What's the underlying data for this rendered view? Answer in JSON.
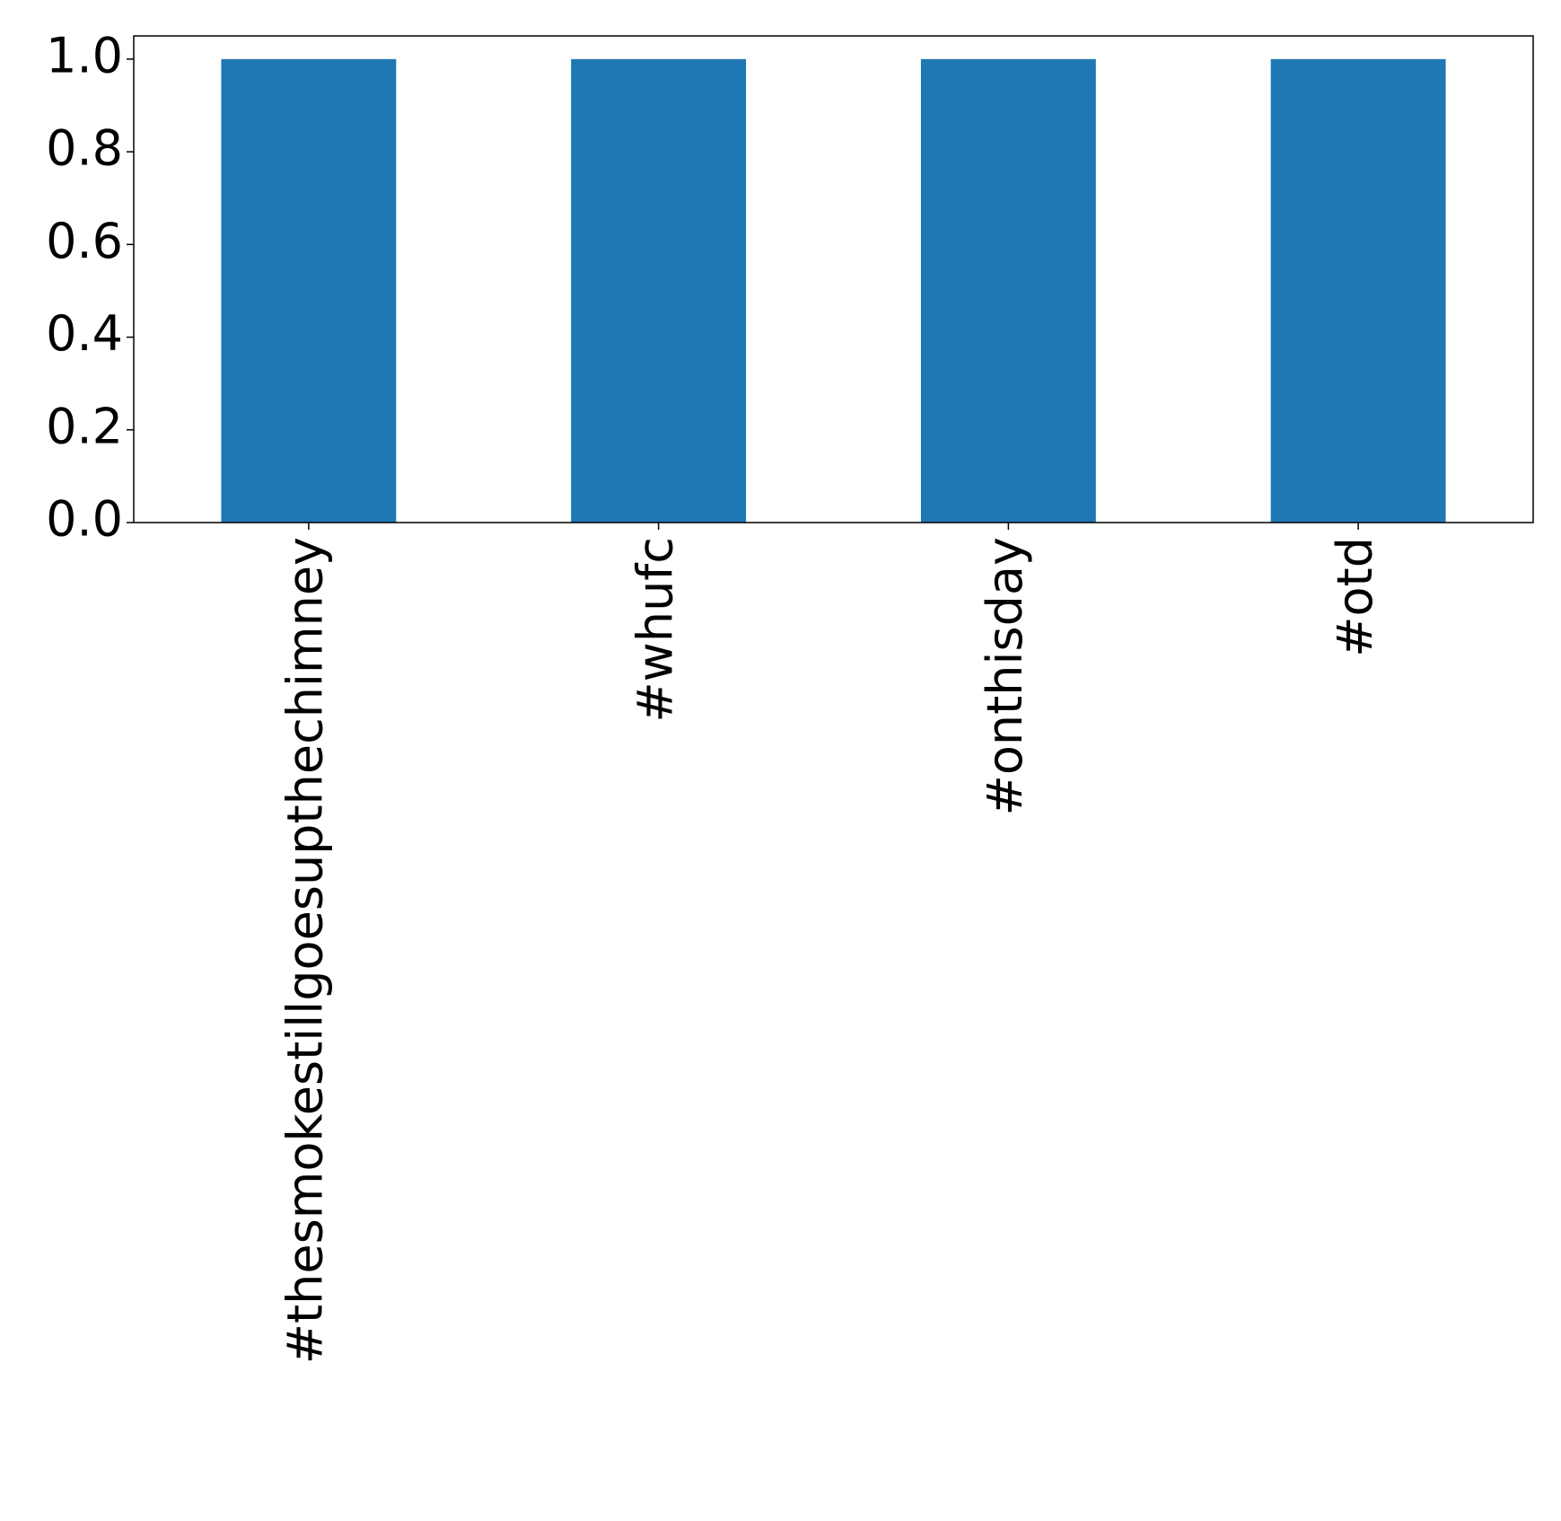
{
  "chart_data": {
    "type": "bar",
    "categories": [
      "#thesmokestillgoesupthechimney",
      "#whufc",
      "#onthisday",
      "#otd"
    ],
    "values": [
      1,
      1,
      1,
      1
    ],
    "color": "#1f77b4",
    "ylim": [
      0,
      1.05
    ],
    "yticks": [
      {
        "value": 0,
        "label": "0.0"
      },
      0.2,
      0.4,
      0.6,
      0.8,
      {
        "value": 1,
        "label": "1.0"
      }
    ],
    "grid": false
  }
}
